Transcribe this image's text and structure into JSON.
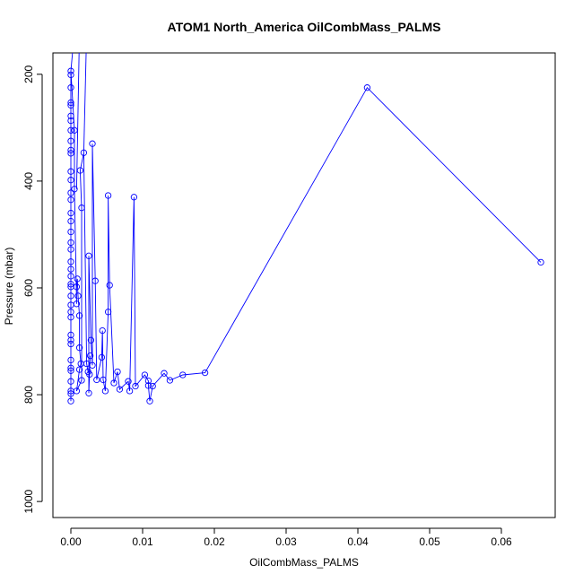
{
  "chart_data": {
    "type": "line",
    "title": "ATOM1 North_America OilCombMass_PALMS",
    "xlabel": "OilCombMass_PALMS",
    "ylabel": "Pressure (mbar)",
    "xlim": [
      -0.0025,
      0.0675
    ],
    "ylim": [
      1030,
      160
    ],
    "y_reversed": true,
    "grid": false,
    "markers": "open-circle",
    "color": "#0000ff",
    "x_ticks": [
      {
        "value": 0.0,
        "label": "0.00"
      },
      {
        "value": 0.01,
        "label": "0.01"
      },
      {
        "value": 0.02,
        "label": "0.02"
      },
      {
        "value": 0.03,
        "label": "0.03"
      },
      {
        "value": 0.04,
        "label": "0.04"
      },
      {
        "value": 0.05,
        "label": "0.05"
      },
      {
        "value": 0.06,
        "label": "0.06"
      }
    ],
    "y_ticks": [
      {
        "value": 200,
        "label": "200"
      },
      {
        "value": 400,
        "label": "400"
      },
      {
        "value": 600,
        "label": "600"
      },
      {
        "value": 800,
        "label": "800"
      },
      {
        "value": 1000,
        "label": "1000"
      }
    ],
    "series": [
      {
        "points": [
          [
            0.0,
            812
          ],
          [
            0.0,
            798
          ],
          [
            0.0,
            793
          ],
          [
            0.0,
            775
          ],
          [
            0.0,
            755
          ],
          [
            0.0,
            750
          ],
          [
            0.0,
            735
          ],
          [
            0.0,
            705
          ],
          [
            0.0,
            698
          ],
          [
            0.0,
            688
          ],
          [
            0.0,
            655
          ],
          [
            0.0,
            645
          ],
          [
            0.0,
            632
          ],
          [
            0.0,
            615
          ],
          [
            0.0,
            598
          ],
          [
            0.0,
            593
          ],
          [
            0.0,
            578
          ],
          [
            0.0,
            565
          ],
          [
            0.0,
            551
          ],
          [
            0.0,
            528
          ],
          [
            0.0,
            515
          ],
          [
            0.0,
            495
          ],
          [
            0.0,
            475
          ],
          [
            0.0,
            460
          ],
          [
            0.0,
            435
          ],
          [
            0.0,
            422
          ],
          [
            0.0,
            398
          ],
          [
            0.0,
            382
          ],
          [
            0.0,
            348
          ],
          [
            0.0,
            342
          ],
          [
            0.0,
            325
          ],
          [
            0.0,
            305
          ],
          [
            0.0,
            287
          ],
          [
            0.0,
            278
          ],
          [
            0.0,
            258
          ],
          [
            0.0,
            253
          ],
          [
            0.0,
            225
          ],
          [
            0.0,
            201
          ],
          [
            0.0,
            194
          ],
          [
            0.0005,
            305
          ],
          [
            0.0005,
            415
          ],
          [
            0.0008,
            630
          ],
          [
            0.0008,
            598
          ],
          [
            0.0009,
            583
          ],
          [
            0.001,
            615
          ],
          [
            0.0012,
            652
          ],
          [
            0.0012,
            712
          ],
          [
            0.0014,
            742
          ],
          [
            0.0012,
            753
          ],
          [
            0.0008,
            793
          ],
          [
            0.0015,
            773
          ],
          [
            0.0015,
            450
          ],
          [
            0.0013,
            380
          ],
          [
            0.0018,
            347
          ],
          [
            0.0022,
            742
          ],
          [
            0.0024,
            757
          ],
          [
            0.0026,
            762
          ],
          [
            0.0027,
            727
          ],
          [
            0.0025,
            797
          ],
          [
            0.0025,
            540
          ],
          [
            0.0028,
            698
          ],
          [
            0.003,
            745
          ],
          [
            0.003,
            330
          ],
          [
            0.0034,
            587
          ],
          [
            0.0036,
            772
          ],
          [
            0.0043,
            730
          ],
          [
            0.0044,
            680
          ],
          [
            0.0045,
            772
          ],
          [
            0.0048,
            793
          ],
          [
            0.0052,
            645
          ],
          [
            0.0052,
            427
          ],
          [
            0.0054,
            595
          ],
          [
            0.006,
            778
          ],
          [
            0.0065,
            757
          ],
          [
            0.0068,
            790
          ],
          [
            0.008,
            775
          ],
          [
            0.0082,
            793
          ],
          [
            0.0088,
            430
          ],
          [
            0.009,
            784
          ],
          [
            0.0103,
            763
          ],
          [
            0.0108,
            774
          ],
          [
            0.0108,
            783
          ],
          [
            0.011,
            812
          ],
          [
            0.0114,
            784
          ],
          [
            0.013,
            760
          ],
          [
            0.0138,
            773
          ],
          [
            0.0156,
            763
          ],
          [
            0.0187,
            759
          ],
          [
            0.0413,
            225
          ],
          [
            0.0655,
            552
          ]
        ]
      }
    ]
  }
}
